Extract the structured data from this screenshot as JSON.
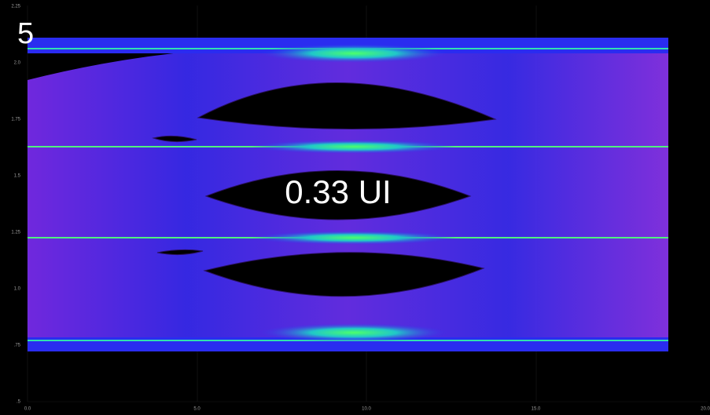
{
  "panel_number": "5",
  "annotation": "0.33 UI",
  "y_axis": {
    "ticks": [
      "2.25",
      "2.0",
      "1.75",
      "1.5",
      "1.25",
      "1.0",
      ".75",
      ".5"
    ]
  },
  "x_axis": {
    "ticks": [
      "0.0",
      "5.0",
      "10.0",
      "15.0",
      "20.0"
    ]
  }
}
